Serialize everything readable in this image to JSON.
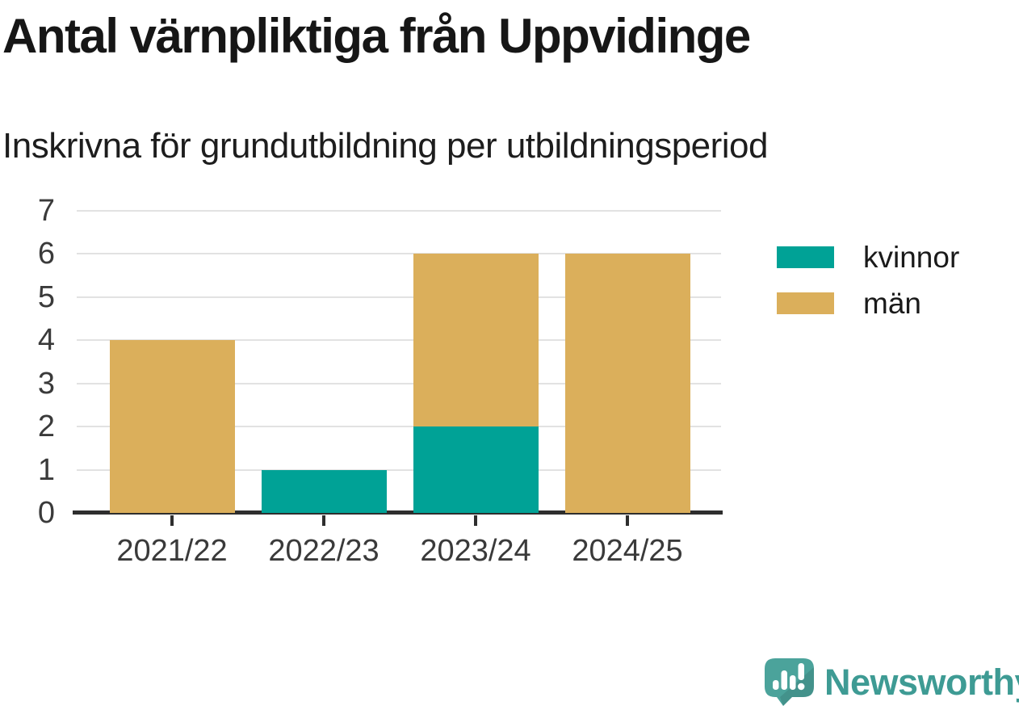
{
  "header": {
    "title": "Antal värnpliktiga från Uppvidinge",
    "subtitle": "Inskrivna för grundutbildning per utbildningsperiod"
  },
  "chart_data": {
    "type": "bar",
    "stacked": true,
    "title": "Antal värnpliktiga från Uppvidinge",
    "subtitle": "Inskrivna för grundutbildning per utbildningsperiod",
    "categories": [
      "2021/22",
      "2022/23",
      "2023/24",
      "2024/25"
    ],
    "series": [
      {
        "name": "kvinnor",
        "color": "#00A296",
        "values": [
          0,
          1,
          2,
          0
        ]
      },
      {
        "name": "män",
        "color": "#DBAF5B",
        "values": [
          4,
          0,
          4,
          6
        ]
      }
    ],
    "stack_totals": [
      4,
      1,
      6,
      6
    ],
    "xlabel": "",
    "ylabel": "",
    "ylim": [
      0,
      7
    ],
    "yticks": [
      0,
      1,
      2,
      3,
      4,
      5,
      6,
      7
    ],
    "grid": true,
    "legend_position": "right"
  },
  "legend": {
    "items": [
      {
        "label": "kvinnor",
        "color": "#00A296"
      },
      {
        "label": "män",
        "color": "#DBAF5B"
      }
    ]
  },
  "footer": {
    "brand": "Newsworthy"
  },
  "colors": {
    "series_kvinnor": "#00A296",
    "series_man": "#DBAF5B",
    "axis": "#2E2E2E",
    "gridline": "#E2E2E2",
    "title_text": "#161616",
    "tick_label": "#3A3A3A",
    "brand_teal": "#3E9B94",
    "logo_mark": "#4BA39B",
    "background": "#FFFFFF"
  }
}
